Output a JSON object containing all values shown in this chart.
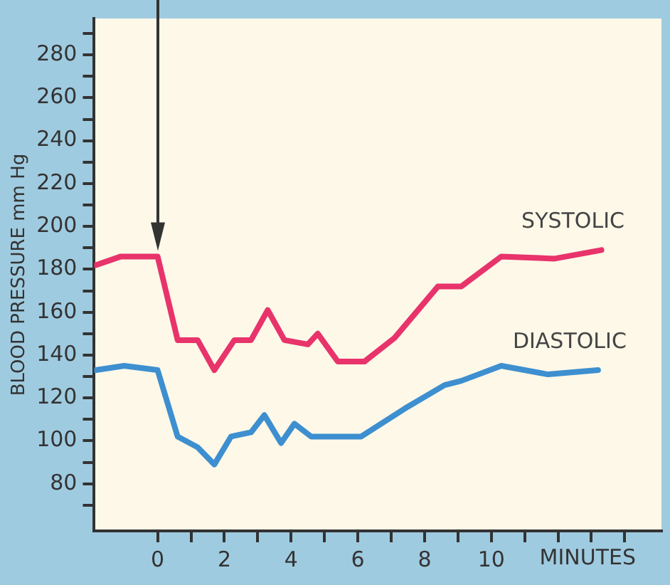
{
  "chart_data": {
    "type": "line",
    "ylabel": "BLOOD PRESSURE mm Hg",
    "xlabel": "MINUTES",
    "xlim": [
      -1.9,
      15.1
    ],
    "ylim": [
      58,
      297
    ],
    "xticks": [
      0,
      {
        "value": 1,
        "label": null
      },
      2,
      {
        "value": 3,
        "label": null
      },
      4,
      {
        "value": 5,
        "label": null
      },
      6,
      {
        "value": 7,
        "label": null
      },
      8,
      {
        "value": 9,
        "label": null
      },
      10,
      {
        "value": 11,
        "label": null
      },
      {
        "value": 12,
        "label": null
      },
      {
        "value": 13,
        "label": null
      },
      {
        "value": 14,
        "label": null
      }
    ],
    "yticks": [
      {
        "value": 70,
        "label": null
      },
      80,
      {
        "value": 90,
        "label": null
      },
      100,
      {
        "value": 110,
        "label": null
      },
      120,
      {
        "value": 130,
        "label": null
      },
      140,
      {
        "value": 150,
        "label": null
      },
      160,
      {
        "value": 170,
        "label": null
      },
      180,
      {
        "value": 190,
        "label": null
      },
      200,
      {
        "value": 210,
        "label": null
      },
      220,
      {
        "value": 230,
        "label": null
      },
      240,
      {
        "value": 250,
        "label": null
      },
      260,
      {
        "value": 270,
        "label": null
      },
      280,
      {
        "value": 290,
        "label": null
      }
    ],
    "grid": false,
    "legend": false,
    "marker": "none",
    "line_style": "solid",
    "series": [
      {
        "name": "SYSTOLIC",
        "color": "#e8336b",
        "x": [
          -1.85,
          -1.1,
          0,
          0.6,
          1.2,
          1.7,
          2.3,
          2.8,
          3.3,
          3.8,
          4.5,
          4.8,
          5.4,
          6.2,
          7.1,
          8.4,
          9.1,
          10.3,
          11.9,
          13.3
        ],
        "values": [
          182,
          186,
          186,
          147,
          147,
          133,
          147,
          147,
          161,
          147,
          145,
          150,
          137,
          137,
          148,
          172,
          172,
          186,
          185,
          189
        ]
      },
      {
        "name": "DIASTOLIC",
        "color": "#3d8fd0",
        "x": [
          -1.85,
          -1.0,
          0,
          0.6,
          1.2,
          1.7,
          2.2,
          2.8,
          3.2,
          3.7,
          4.1,
          4.6,
          6.1,
          7.4,
          8.6,
          9.1,
          10.3,
          11.7,
          13.2
        ],
        "values": [
          133,
          135,
          133,
          102,
          97,
          89,
          102,
          104,
          112,
          99,
          108,
          102,
          102,
          115,
          126,
          128,
          135,
          131,
          133
        ]
      }
    ]
  }
}
